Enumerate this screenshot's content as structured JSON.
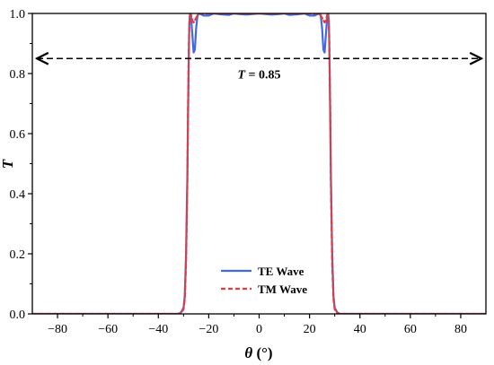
{
  "chart_data": {
    "type": "line",
    "xlabel_var": "θ",
    "xlabel_unit": " (°)",
    "ylabel": "T",
    "xlim": [
      -90,
      90
    ],
    "ylim": [
      0,
      1.0
    ],
    "xticks": [
      -80,
      -60,
      -40,
      -20,
      0,
      20,
      40,
      60,
      80
    ],
    "xtick_labels": [
      "−80",
      "−60",
      "−40",
      "−20",
      "0",
      "20",
      "40",
      "60",
      "80"
    ],
    "yticks": [
      0.0,
      0.2,
      0.4,
      0.6,
      0.8,
      1.0
    ],
    "ytick_labels": [
      "0.0",
      "0.2",
      "0.4",
      "0.6",
      "0.8",
      "1.0"
    ],
    "legend_position": "bottom-center",
    "annotation": {
      "var": "T",
      "text": " = 0.85",
      "y": 0.85,
      "x_from": -90,
      "x_to": 90,
      "style": "dashed double-headed arrow"
    },
    "series": [
      {
        "name": "TE Wave",
        "color": "#4169e1",
        "dash": "solid",
        "x": [
          -90,
          -32,
          -31,
          -30,
          -29.5,
          -29,
          -28.5,
          -28,
          -27.7,
          -27.4,
          -27,
          -26.5,
          -26,
          -25.5,
          -25,
          -24.5,
          -24,
          -23,
          -22,
          -20,
          -18,
          -15,
          -12,
          -10,
          -8,
          -5,
          0,
          5,
          8,
          10,
          12,
          15,
          18,
          20,
          22,
          23,
          24,
          24.5,
          25,
          25.5,
          26,
          26.5,
          27,
          27.4,
          27.7,
          28,
          28.5,
          29,
          29.5,
          30,
          31,
          32,
          90
        ],
        "y": [
          0,
          0,
          0.005,
          0.02,
          0.06,
          0.2,
          0.45,
          0.8,
          0.97,
          1.0,
          0.985,
          0.93,
          0.87,
          0.88,
          0.95,
          0.99,
          1.0,
          0.997,
          0.993,
          0.993,
          1.0,
          0.997,
          0.995,
          1.0,
          0.998,
          0.996,
          1.0,
          0.996,
          0.998,
          1.0,
          0.995,
          0.997,
          1.0,
          0.993,
          0.993,
          0.997,
          1.0,
          0.99,
          0.95,
          0.88,
          0.87,
          0.93,
          0.985,
          1.0,
          0.97,
          0.8,
          0.45,
          0.2,
          0.06,
          0.02,
          0.005,
          0,
          0
        ]
      },
      {
        "name": "TM Wave",
        "color": "#e83a3a",
        "dash": "dashed",
        "x": [
          -90,
          -32,
          -31,
          -30,
          -29.5,
          -29,
          -28.5,
          -28.2,
          -27.8,
          -27.5,
          -27,
          -26.5,
          -26,
          -25,
          -24,
          -22,
          -20,
          -15,
          -10,
          -5,
          0,
          5,
          10,
          15,
          20,
          22,
          24,
          25,
          26,
          26.5,
          27,
          27.5,
          27.8,
          28.2,
          28.5,
          29,
          29.5,
          30,
          31,
          32,
          90
        ],
        "y": [
          0,
          0,
          0.004,
          0.015,
          0.05,
          0.17,
          0.42,
          0.7,
          0.93,
          0.99,
          0.995,
          0.975,
          0.97,
          0.985,
          1.0,
          0.999,
          1.0,
          1.0,
          1.0,
          1.0,
          1.0,
          1.0,
          1.0,
          1.0,
          1.0,
          0.999,
          1.0,
          0.985,
          0.97,
          0.975,
          0.995,
          0.99,
          0.93,
          0.7,
          0.42,
          0.17,
          0.05,
          0.015,
          0.004,
          0,
          0
        ]
      }
    ]
  }
}
